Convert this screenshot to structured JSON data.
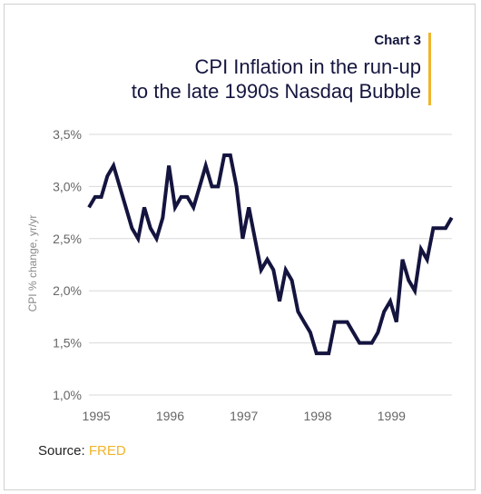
{
  "header": {
    "chart_label": "Chart 3",
    "title_line1": "CPI Inflation in the run-up",
    "title_line2": "to the late 1990s Nasdaq Bubble"
  },
  "footer": {
    "source_prefix": "Source: ",
    "source_link": "FRED"
  },
  "colors": {
    "line": "#14143f",
    "accent": "#f0b429",
    "grid": "#d9d9d9"
  },
  "chart_data": {
    "type": "line",
    "title": "CPI Inflation in the run-up to the late 1990s Nasdaq Bubble",
    "xlabel": "",
    "ylabel": "CPI % change, yr/yr",
    "xlim": [
      "1995-01",
      "1999-12"
    ],
    "ylim": [
      1.0,
      3.5
    ],
    "yticks": [
      "1,0%",
      "1,5%",
      "2,0%",
      "2,5%",
      "3,0%",
      "3,5%"
    ],
    "xticks": [
      "1995",
      "1996",
      "1997",
      "1998",
      "1999"
    ],
    "grid": "horizontal",
    "series": [
      {
        "x": [
          "1995-01",
          "1995-02",
          "1995-03",
          "1995-04",
          "1995-05",
          "1995-06",
          "1995-07",
          "1995-08",
          "1995-09",
          "1995-10",
          "1995-11",
          "1995-12",
          "1996-01",
          "1996-02",
          "1996-03",
          "1996-04",
          "1996-05",
          "1996-06",
          "1996-07",
          "1996-08",
          "1996-09",
          "1996-10",
          "1996-11",
          "1996-12",
          "1997-01",
          "1997-02",
          "1997-03",
          "1997-04",
          "1997-05",
          "1997-06",
          "1997-07",
          "1997-08",
          "1997-09",
          "1997-10",
          "1997-11",
          "1997-12",
          "1998-01",
          "1998-02",
          "1998-03",
          "1998-04",
          "1998-05",
          "1998-06",
          "1998-07",
          "1998-08",
          "1998-09",
          "1998-10",
          "1998-11",
          "1998-12",
          "1999-01",
          "1999-02",
          "1999-03",
          "1999-04",
          "1999-05",
          "1999-06",
          "1999-07",
          "1999-08",
          "1999-09",
          "1999-10",
          "1999-11",
          "1999-12"
        ],
        "values": [
          2.8,
          2.9,
          2.9,
          3.1,
          3.2,
          3.0,
          2.8,
          2.6,
          2.5,
          2.8,
          2.6,
          2.5,
          2.7,
          3.2,
          2.8,
          2.9,
          2.9,
          2.8,
          3.0,
          3.2,
          3.0,
          3.0,
          3.3,
          3.3,
          3.0,
          2.5,
          2.8,
          2.5,
          2.2,
          2.3,
          2.2,
          1.9,
          2.2,
          2.1,
          1.8,
          1.7,
          1.6,
          1.4,
          1.4,
          1.4,
          1.7,
          1.7,
          1.7,
          1.6,
          1.5,
          1.5,
          1.5,
          1.6,
          1.8,
          1.9,
          1.7,
          2.3,
          2.1,
          2.0,
          2.4,
          2.3,
          2.6,
          2.6,
          2.6,
          2.7
        ]
      }
    ]
  }
}
